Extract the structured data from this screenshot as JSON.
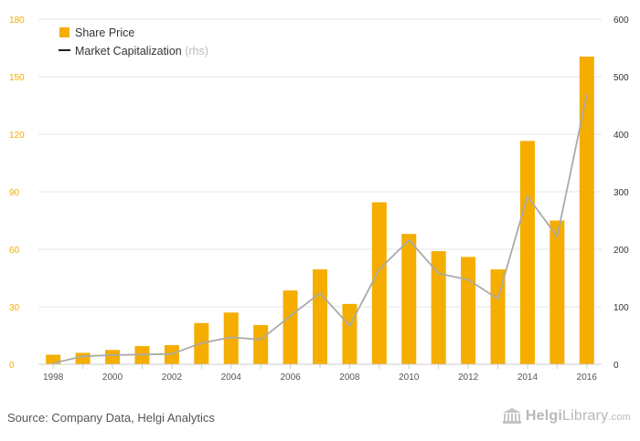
{
  "chart_data": {
    "type": "bar+line",
    "x": [
      1998,
      1999,
      2000,
      2001,
      2002,
      2003,
      2004,
      2005,
      2006,
      2007,
      2008,
      2009,
      2010,
      2011,
      2012,
      2013,
      2014,
      2015,
      2016
    ],
    "x_tick_labels": [
      "1998",
      "2000",
      "2002",
      "2004",
      "2006",
      "2008",
      "2010",
      "2012",
      "2014",
      "2016"
    ],
    "series": [
      {
        "name": "Share Price",
        "type": "bar",
        "axis": "left",
        "color": "#f5ad00",
        "values": [
          5,
          6,
          7.5,
          9.5,
          10,
          21.5,
          27,
          20.5,
          38.5,
          49.5,
          31.5,
          84.5,
          68,
          59,
          56,
          49.5,
          116.5,
          75,
          160.5
        ]
      },
      {
        "name": "Market Capitalization",
        "suffix": "(rhs)",
        "type": "line",
        "axis": "right",
        "color": "#aaaaaa",
        "values": [
          2,
          14,
          16,
          17,
          18,
          37,
          47,
          43,
          84,
          124,
          67,
          165,
          216,
          158,
          147,
          114,
          292,
          222,
          469
        ]
      }
    ],
    "y_left": {
      "min": 0,
      "max": 180,
      "ticks": [
        0,
        30,
        60,
        90,
        120,
        150,
        180
      ],
      "color": "#f5ad00"
    },
    "y_right": {
      "min": 0,
      "max": 600,
      "ticks": [
        0,
        100,
        200,
        300,
        400,
        500,
        600
      ],
      "color": "#333333"
    },
    "grid": true,
    "legend_position": "top-left"
  },
  "footer": {
    "source": "Source: Company Data, Helgi Analytics",
    "brand_bold": "Helgi",
    "brand_rest": "Library",
    "brand_suffix": ".com"
  }
}
